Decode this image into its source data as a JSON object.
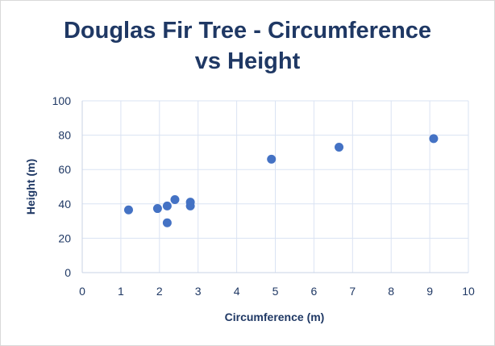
{
  "chart_data": {
    "type": "scatter",
    "title_line1": "Douglas Fir Tree - Circumference",
    "title_line2": "vs Height",
    "xlabel": "Circumference (m)",
    "ylabel": "Height (m)",
    "xlim": [
      0,
      10
    ],
    "ylim": [
      0,
      100
    ],
    "x_ticks": [
      0,
      1,
      2,
      3,
      4,
      5,
      6,
      7,
      8,
      9,
      10
    ],
    "y_ticks": [
      0,
      20,
      40,
      60,
      80,
      100
    ],
    "grid": true,
    "legend": "none",
    "marker_color": "#4472c4",
    "text_color": "#1f3864",
    "grid_color": "#dae3f3",
    "points": [
      {
        "x": 1.2,
        "y": 36.5
      },
      {
        "x": 1.95,
        "y": 37.3
      },
      {
        "x": 2.2,
        "y": 38.8
      },
      {
        "x": 2.2,
        "y": 29.0
      },
      {
        "x": 2.4,
        "y": 42.5
      },
      {
        "x": 2.8,
        "y": 41.0
      },
      {
        "x": 2.8,
        "y": 38.8
      },
      {
        "x": 4.9,
        "y": 66.0
      },
      {
        "x": 6.65,
        "y": 73.0
      },
      {
        "x": 9.1,
        "y": 78.0
      }
    ]
  }
}
